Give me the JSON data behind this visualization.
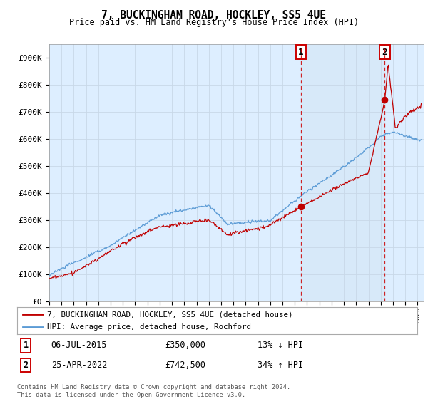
{
  "title": "7, BUCKINGHAM ROAD, HOCKLEY, SS5 4UE",
  "subtitle": "Price paid vs. HM Land Registry's House Price Index (HPI)",
  "ylabel_ticks": [
    "£0",
    "£100K",
    "£200K",
    "£300K",
    "£400K",
    "£500K",
    "£600K",
    "£700K",
    "£800K",
    "£900K"
  ],
  "ytick_values": [
    0,
    100000,
    200000,
    300000,
    400000,
    500000,
    600000,
    700000,
    800000,
    900000
  ],
  "ylim": [
    0,
    950000
  ],
  "hpi_color": "#5b9bd5",
  "price_color": "#c00000",
  "dashed_line_color": "#cc0000",
  "grid_color": "#c8d8e8",
  "background_color": "#ddeeff",
  "shade_color": "#cde0f0",
  "legend_label_price": "7, BUCKINGHAM ROAD, HOCKLEY, SS5 4UE (detached house)",
  "legend_label_hpi": "HPI: Average price, detached house, Rochford",
  "ann1_x": 2015.5,
  "ann2_x": 2022.33,
  "sale1_price": 350000,
  "sale2_price": 742500,
  "footer": "Contains HM Land Registry data © Crown copyright and database right 2024.\nThis data is licensed under the Open Government Licence v3.0.",
  "xmin": 1995,
  "xmax": 2025.5
}
